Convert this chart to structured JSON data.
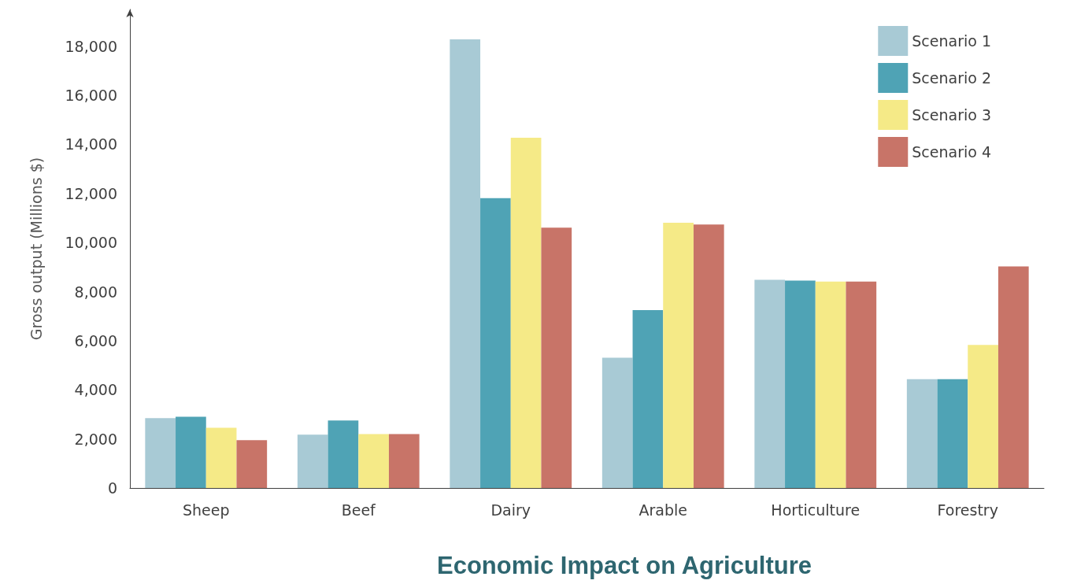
{
  "chart_data": {
    "type": "bar",
    "title": "Economic Impact on Agriculture",
    "ylabel": "Gross output (Millions $)",
    "categories": [
      "Sheep",
      "Beef",
      "Dairy",
      "Arable",
      "Horticulture",
      "Forestry"
    ],
    "series": [
      {
        "name": "Scenario 1",
        "color": "#a8cad5",
        "values": [
          2850,
          2170,
          18280,
          5310,
          8480,
          4430
        ]
      },
      {
        "name": "Scenario 2",
        "color": "#4fa3b5",
        "values": [
          2900,
          2750,
          11810,
          7250,
          8450,
          4430
        ]
      },
      {
        "name": "Scenario 3",
        "color": "#f5ea87",
        "values": [
          2450,
          2200,
          14270,
          10810,
          8410,
          5830
        ]
      },
      {
        "name": "Scenario 4",
        "color": "#c87468",
        "values": [
          1950,
          2200,
          10610,
          10740,
          8410,
          9030
        ]
      }
    ],
    "ylim": [
      0,
      19500
    ],
    "yticks": [
      0,
      {
        "value": 2000,
        "label": "2,000"
      },
      {
        "value": 4000,
        "label": "4,000"
      },
      {
        "value": 6000,
        "label": "6,000"
      },
      {
        "value": 8000,
        "label": "8,000"
      },
      {
        "value": 10000,
        "label": "10,000"
      },
      {
        "value": 12000,
        "label": "12,000"
      },
      {
        "value": 14000,
        "label": "14,000"
      },
      {
        "value": 16000,
        "label": "16,000"
      },
      {
        "value": 18000,
        "label": "18,000"
      }
    ],
    "grid": false,
    "legend": "top right"
  }
}
